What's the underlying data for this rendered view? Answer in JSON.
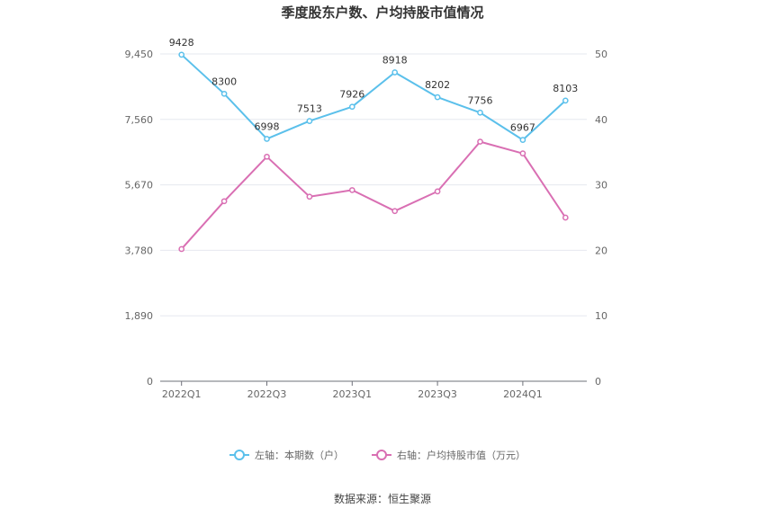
{
  "chart_data": {
    "type": "line",
    "title": "季度股东户数、户均持股市值情况",
    "categories": [
      "2022Q1",
      "2022Q2",
      "2022Q3",
      "2022Q4",
      "2023Q1",
      "2023Q2",
      "2023Q3",
      "2023Q4",
      "2024Q1",
      "2024Q2"
    ],
    "x_tick_labels": [
      "2022Q1",
      "",
      "2022Q3",
      "",
      "2023Q1",
      "",
      "2023Q3",
      "",
      "2024Q1",
      ""
    ],
    "left_axis": {
      "ylim": [
        0,
        9450
      ],
      "ticks": [
        0,
        1890,
        3780,
        5670,
        7560,
        9450
      ],
      "tick_labels": [
        "0",
        "1,890",
        "3,780",
        "5,670",
        "7,560",
        "9,450"
      ]
    },
    "right_axis": {
      "ylim": [
        0,
        50
      ],
      "ticks": [
        0,
        10,
        20,
        30,
        40,
        50
      ],
      "tick_labels": [
        "0",
        "10",
        "20",
        "30",
        "40",
        "50"
      ]
    },
    "series": [
      {
        "name": "左轴：本期数（户）",
        "axis": "left",
        "color": "#5bc0eb",
        "values": [
          9428,
          8300,
          6998,
          7513,
          7926,
          8918,
          8202,
          7756,
          6967,
          8103
        ],
        "show_labels": true
      },
      {
        "name": "右轴：户均持股市值（万元）",
        "axis": "right",
        "color": "#d96fb3",
        "values": [
          20.2,
          27.5,
          34.3,
          28.2,
          29.2,
          26.0,
          29.0,
          36.6,
          34.8,
          25.0
        ],
        "show_labels": false
      }
    ],
    "grid": true,
    "legend_position": "bottom"
  },
  "source_text": "数据来源：恒生聚源"
}
